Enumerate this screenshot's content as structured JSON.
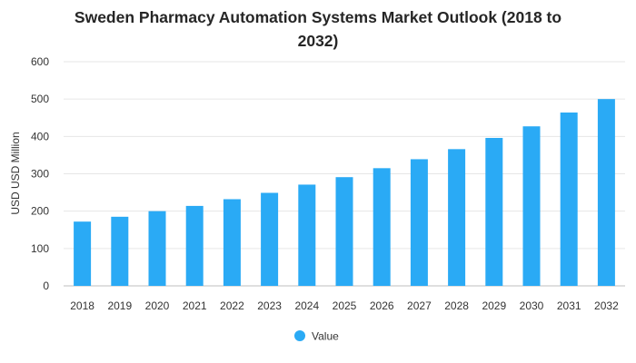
{
  "chart_data": {
    "type": "bar",
    "title_line1": "Sweden Pharmacy Automation Systems Market Outlook (2018 to",
    "title_line2": "2032)",
    "xlabel": "",
    "ylabel": "USD USD Million",
    "ylim": [
      0,
      600
    ],
    "yticks": [
      "0",
      "100",
      "200",
      "300",
      "400",
      "500",
      "600"
    ],
    "grid": true,
    "legend_position": "bottom-center",
    "categories": [
      "2018",
      "2019",
      "2020",
      "2021",
      "2022",
      "2023",
      "2024",
      "2025",
      "2026",
      "2027",
      "2028",
      "2029",
      "2030",
      "2031",
      "2032"
    ],
    "series": [
      {
        "name": "Value",
        "color": "#2aaaf5",
        "values": [
          172,
          185,
          200,
          214,
          232,
          249,
          271,
          291,
          315,
          339,
          366,
          396,
          427,
          464,
          500
        ]
      }
    ]
  }
}
